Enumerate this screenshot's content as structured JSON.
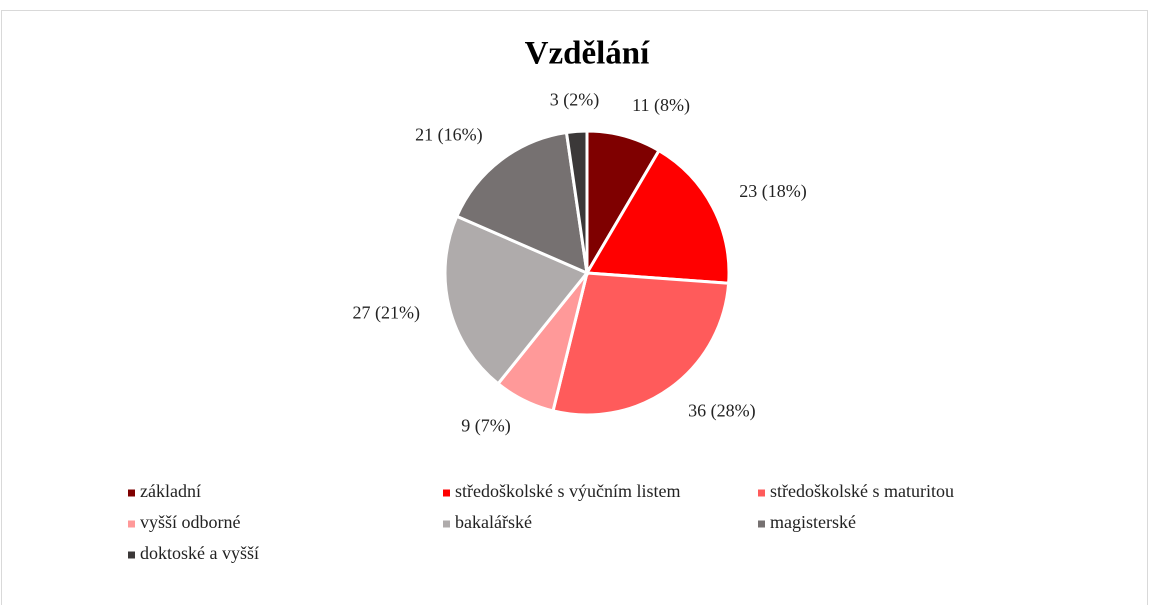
{
  "chart_data": {
    "type": "pie",
    "title": "Vzdělání",
    "categories": [
      "základní",
      "středoškolské s výučním listem",
      "středoškolské s maturitou",
      "vyšší odborné",
      "bakalářské",
      "magisterské",
      "doktoské a vyšší"
    ],
    "values": [
      11,
      23,
      36,
      9,
      27,
      21,
      3
    ],
    "value_labels": [
      "11 (8%)",
      "23 (18%)",
      "36 (28%)",
      "9 (7%)",
      "27 (21%)",
      "21 (16%)",
      "3 (2%)"
    ],
    "colors": [
      "#7f0000",
      "#ff0000",
      "#ff5b5b",
      "#ff9999",
      "#afabab",
      "#767171",
      "#3b3838"
    ],
    "legend": "bottom"
  }
}
